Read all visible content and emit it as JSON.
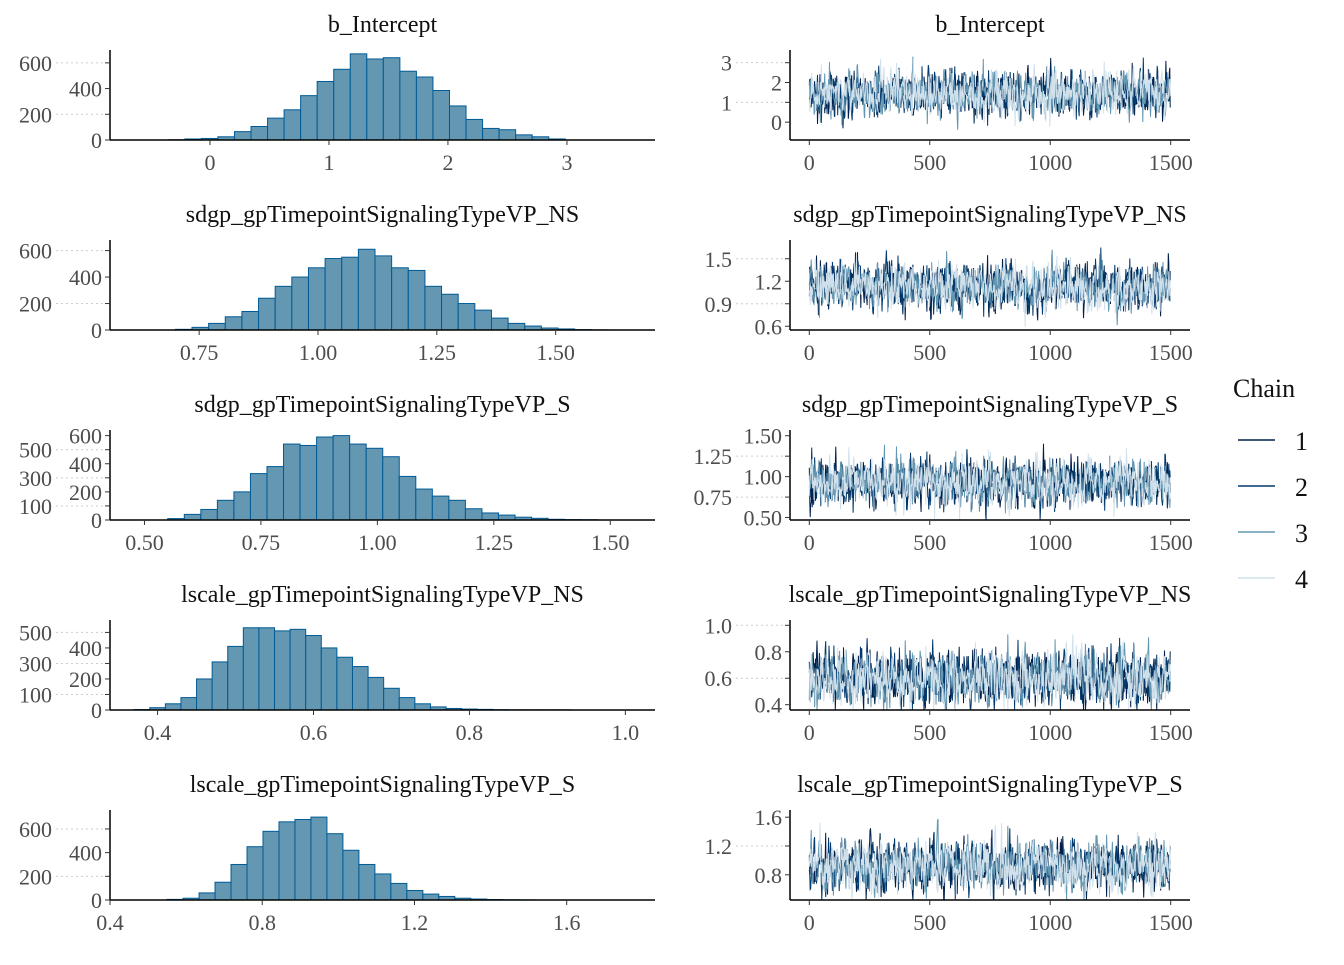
{
  "chart_data": {
    "type": "mcmc-plot",
    "legend": {
      "title": "Chain",
      "placement": "right",
      "entries": [
        {
          "label": "1",
          "color": "#011f4b"
        },
        {
          "label": "2",
          "color": "#03396c"
        },
        {
          "label": "3",
          "color": "#6497b1"
        },
        {
          "label": "4",
          "color": "#d1e1ec"
        }
      ]
    },
    "hist_fill": "#6497b1",
    "hist_edge": "#005b96",
    "panels": [
      {
        "title": "b_Intercept",
        "hist": {
          "xlim": [
            -0.84,
            3.74
          ],
          "ylim": [
            0,
            700
          ],
          "xticks": [
            "0",
            "1",
            "2",
            "3"
          ],
          "xtick_values": [
            0,
            1,
            2,
            3
          ],
          "yticks": [
            "0",
            "200",
            "400",
            "600"
          ],
          "ytick_values": [
            0,
            200,
            400,
            600
          ],
          "bin_start": -0.35,
          "bin_width": 0.139,
          "counts": [
            2,
            8,
            12,
            25,
            65,
            105,
            170,
            235,
            345,
            455,
            550,
            670,
            630,
            640,
            535,
            490,
            385,
            265,
            160,
            90,
            80,
            40,
            25,
            8
          ]
        },
        "trace": {
          "xlim": [
            -80,
            1580
          ],
          "ylim": [
            -0.9,
            3.64
          ],
          "xticks": [
            "0",
            "500",
            "1000",
            "1500"
          ],
          "xtick_values": [
            0,
            500,
            1000,
            1500
          ],
          "yticks": [
            "0",
            "1",
            "2",
            "3"
          ],
          "ytick_values": [
            0,
            1,
            2,
            3
          ],
          "iterations": 1500,
          "mean": 1.45,
          "sd": 0.55
        }
      },
      {
        "title": "sdgp_gpTimepointSignalingTypeVP_NS",
        "hist": {
          "xlim": [
            0.5625,
            1.709
          ],
          "ylim": [
            0,
            680
          ],
          "xticks": [
            "0.75",
            "1.00",
            "1.25",
            "1.50"
          ],
          "xtick_values": [
            0.75,
            1.0,
            1.25,
            1.5
          ],
          "yticks": [
            "0",
            "200",
            "400",
            "600"
          ],
          "ytick_values": [
            0,
            200,
            400,
            600
          ],
          "bin_start": 0.7,
          "bin_width": 0.035,
          "counts": [
            5,
            20,
            50,
            100,
            140,
            240,
            330,
            400,
            470,
            540,
            550,
            610,
            560,
            470,
            450,
            330,
            270,
            200,
            150,
            90,
            50,
            30,
            15,
            8,
            3,
            1
          ]
        },
        "trace": {
          "xlim": [
            -80,
            1580
          ],
          "ylim": [
            0.55,
            1.75
          ],
          "xticks": [
            "0",
            "500",
            "1000",
            "1500"
          ],
          "xtick_values": [
            0,
            500,
            1000,
            1500
          ],
          "yticks": [
            "0.6",
            "0.9",
            "1.2",
            "1.5"
          ],
          "ytick_values": [
            0.6,
            0.9,
            1.2,
            1.5
          ],
          "iterations": 1500,
          "mean": 1.12,
          "sd": 0.15
        }
      },
      {
        "title": "sdgp_gpTimepointSignalingTypeVP_S",
        "hist": {
          "xlim": [
            0.426,
            1.596
          ],
          "ylim": [
            0,
            640
          ],
          "xticks": [
            "0.50",
            "0.75",
            "1.00",
            "1.25",
            "1.50"
          ],
          "xtick_values": [
            0.5,
            0.75,
            1.0,
            1.25,
            1.5
          ],
          "yticks": [
            "0",
            "100",
            "200",
            "300",
            "400",
            "500",
            "600"
          ],
          "ytick_values": [
            0,
            100,
            200,
            300,
            400,
            500,
            600
          ],
          "bin_start": 0.55,
          "bin_width": 0.0355,
          "counts": [
            10,
            40,
            75,
            140,
            200,
            330,
            380,
            540,
            530,
            590,
            600,
            540,
            510,
            450,
            310,
            220,
            170,
            140,
            80,
            50,
            35,
            20,
            12,
            5,
            3,
            2
          ]
        },
        "trace": {
          "xlim": [
            -80,
            1580
          ],
          "ylim": [
            0.47,
            1.57
          ],
          "xticks": [
            "0",
            "500",
            "1000",
            "1500"
          ],
          "xtick_values": [
            0,
            500,
            1000,
            1500
          ],
          "yticks": [
            "0.50",
            "0.75",
            "1.00",
            "1.25",
            "1.50"
          ],
          "ytick_values": [
            0.5,
            0.75,
            1.0,
            1.25,
            1.5
          ],
          "iterations": 1500,
          "mean": 0.93,
          "sd": 0.14
        }
      },
      {
        "title": "lscale_gpTimepointSignalingTypeVP_NS",
        "hist": {
          "xlim": [
            0.339,
            1.038
          ],
          "ylim": [
            0,
            580
          ],
          "xticks": [
            "0.4",
            "0.6",
            "0.8",
            "1.0"
          ],
          "xtick_values": [
            0.4,
            0.6,
            0.8,
            1.0
          ],
          "yticks": [
            "0",
            "100",
            "200",
            "300",
            "400",
            "500"
          ],
          "ytick_values": [
            0,
            100,
            200,
            300,
            400,
            500
          ],
          "bin_start": 0.37,
          "bin_width": 0.02,
          "counts": [
            3,
            15,
            40,
            80,
            200,
            310,
            410,
            530,
            530,
            510,
            520,
            480,
            400,
            340,
            280,
            210,
            140,
            80,
            40,
            20,
            10,
            6,
            4,
            2,
            1,
            1,
            1,
            1
          ]
        },
        "trace": {
          "xlim": [
            -80,
            1580
          ],
          "ylim": [
            0.36,
            1.04
          ],
          "xticks": [
            "0",
            "500",
            "1000",
            "1500"
          ],
          "xtick_values": [
            0,
            500,
            1000,
            1500
          ],
          "yticks": [
            "0.4",
            "0.6",
            "0.8",
            "1.0"
          ],
          "ytick_values": [
            0.4,
            0.6,
            0.8,
            1.0
          ],
          "iterations": 1500,
          "mean": 0.6,
          "sd": 0.1
        }
      },
      {
        "title": "lscale_gpTimepointSignalingTypeVP_S",
        "hist": {
          "xlim": [
            0.4,
            1.832
          ],
          "ylim": [
            0,
            760
          ],
          "xticks": [
            "0.4",
            "0.8",
            "1.2",
            "1.6"
          ],
          "xtick_values": [
            0.4,
            0.8,
            1.2,
            1.6
          ],
          "yticks": [
            "0",
            "200",
            "400",
            "600"
          ],
          "ytick_values": [
            0,
            200,
            400,
            600
          ],
          "bin_start": 0.55,
          "bin_width": 0.042,
          "counts": [
            5,
            15,
            60,
            150,
            300,
            450,
            580,
            660,
            680,
            700,
            560,
            420,
            300,
            220,
            140,
            80,
            50,
            30,
            15,
            8,
            4,
            2,
            1
          ]
        },
        "trace": {
          "xlim": [
            -80,
            1580
          ],
          "ylim": [
            0.45,
            1.7
          ],
          "xticks": [
            "0",
            "500",
            "1000",
            "1500"
          ],
          "xtick_values": [
            0,
            500,
            1000,
            1500
          ],
          "yticks": [
            "0.8",
            "1.2",
            "1.6"
          ],
          "ytick_values": [
            0.8,
            1.2,
            1.6
          ],
          "iterations": 1500,
          "mean": 0.93,
          "sd": 0.17
        }
      }
    ]
  }
}
